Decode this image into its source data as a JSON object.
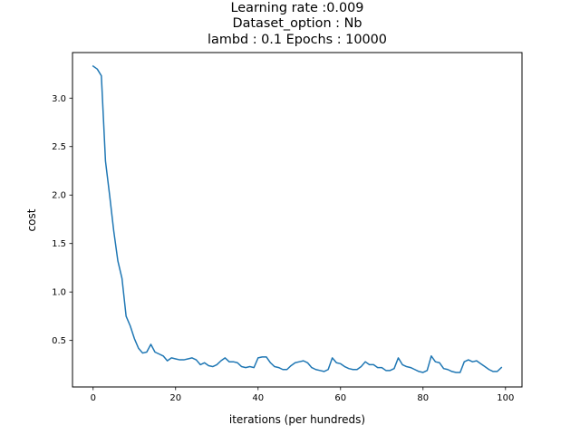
{
  "chart_data": {
    "type": "line",
    "title_lines": [
      "Learning rate :0.009",
      "Dataset_option : Nb",
      "lambd : 0.1 Epochs : 10000"
    ],
    "xlabel": "iterations (per hundreds)",
    "ylabel": "cost",
    "xlim": [
      -5,
      104
    ],
    "ylim": [
      0.02,
      3.47
    ],
    "xticks": [
      0,
      20,
      40,
      60,
      80,
      100
    ],
    "yticks": [
      0.5,
      1.0,
      1.5,
      2.0,
      2.5,
      3.0
    ],
    "xtick_labels": [
      "0",
      "20",
      "40",
      "60",
      "80",
      "100"
    ],
    "ytick_labels": [
      "0.5",
      "1.0",
      "1.5",
      "2.0",
      "2.5",
      "3.0"
    ],
    "grid": false,
    "line_color": "#1f77b4",
    "series": [
      {
        "x": [
          0,
          1,
          2,
          3,
          4,
          5,
          6,
          7,
          8,
          9,
          10,
          11,
          12,
          13,
          14,
          15,
          16,
          17,
          18,
          19,
          20,
          21,
          22,
          23,
          24,
          25,
          26,
          27,
          28,
          29,
          30,
          31,
          32,
          33,
          34,
          35,
          36,
          37,
          38,
          39,
          40,
          41,
          42,
          43,
          44,
          45,
          46,
          47,
          48,
          49,
          50,
          51,
          52,
          53,
          54,
          55,
          56,
          57,
          58,
          59,
          60,
          61,
          62,
          63,
          64,
          65,
          66,
          67,
          68,
          69,
          70,
          71,
          72,
          73,
          74,
          75,
          76,
          77,
          78,
          79,
          80,
          81,
          82,
          83,
          84,
          85,
          86,
          87,
          88,
          89,
          90,
          91,
          92,
          93,
          94,
          95,
          96,
          97,
          98,
          99
        ],
        "values": [
          3.33,
          3.3,
          3.23,
          2.35,
          2.0,
          1.63,
          1.32,
          1.14,
          0.75,
          0.65,
          0.52,
          0.42,
          0.37,
          0.38,
          0.46,
          0.38,
          0.36,
          0.34,
          0.29,
          0.32,
          0.31,
          0.3,
          0.3,
          0.31,
          0.32,
          0.3,
          0.25,
          0.27,
          0.24,
          0.23,
          0.25,
          0.29,
          0.32,
          0.28,
          0.28,
          0.27,
          0.23,
          0.22,
          0.23,
          0.22,
          0.32,
          0.33,
          0.33,
          0.27,
          0.23,
          0.22,
          0.2,
          0.2,
          0.24,
          0.27,
          0.28,
          0.29,
          0.27,
          0.22,
          0.2,
          0.19,
          0.18,
          0.2,
          0.32,
          0.27,
          0.26,
          0.23,
          0.21,
          0.2,
          0.2,
          0.23,
          0.28,
          0.25,
          0.25,
          0.22,
          0.22,
          0.19,
          0.19,
          0.21,
          0.32,
          0.25,
          0.23,
          0.22,
          0.2,
          0.18,
          0.17,
          0.19,
          0.34,
          0.28,
          0.27,
          0.21,
          0.2,
          0.18,
          0.17,
          0.17,
          0.28,
          0.3,
          0.28,
          0.29,
          0.26,
          0.23,
          0.2,
          0.18,
          0.18,
          0.22
        ]
      }
    ]
  }
}
